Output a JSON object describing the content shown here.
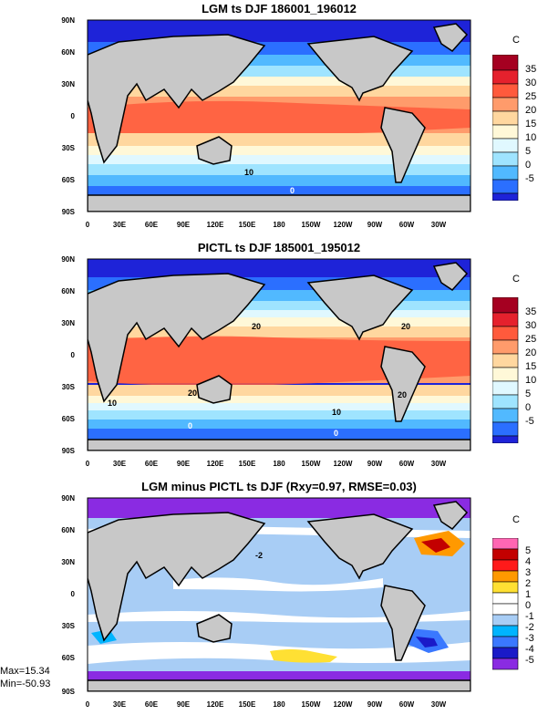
{
  "chart_data": [
    {
      "type": "heatmap",
      "title": "LGM ts DJF 186001_196012",
      "colorbar_unit": "C",
      "colorbar_labels": [
        "35",
        "30",
        "25",
        "20",
        "15",
        "10",
        "5",
        "0",
        "-5"
      ],
      "colorbar_colors": [
        "#a50021",
        "#e5212d",
        "#ff5a3c",
        "#ff9b6b",
        "#ffd79f",
        "#fff8d8",
        "#e0f8ff",
        "#9fe4ff",
        "#51b9ff",
        "#2b6fff",
        "#1e23d8"
      ],
      "lat_ticks": [
        "90N",
        "60N",
        "30N",
        "0",
        "30S",
        "60S",
        "90S"
      ],
      "lon_ticks": [
        "0",
        "30E",
        "60E",
        "90E",
        "120E",
        "150E",
        "180",
        "150W",
        "120W",
        "90W",
        "60W",
        "30W"
      ],
      "contour_labels": [
        "10",
        "0"
      ]
    },
    {
      "type": "heatmap",
      "title": "PICTL ts DJF 185001_195012",
      "colorbar_unit": "C",
      "colorbar_labels": [
        "35",
        "30",
        "25",
        "20",
        "15",
        "10",
        "5",
        "0",
        "-5"
      ],
      "colorbar_colors": [
        "#a50021",
        "#e5212d",
        "#ff5a3c",
        "#ff9b6b",
        "#ffd79f",
        "#fff8d8",
        "#e0f8ff",
        "#9fe4ff",
        "#51b9ff",
        "#2b6fff",
        "#1e23d8"
      ],
      "lat_ticks": [
        "90N",
        "60N",
        "30N",
        "0",
        "30S",
        "60S",
        "90S"
      ],
      "lon_ticks": [
        "0",
        "30E",
        "60E",
        "90E",
        "120E",
        "150E",
        "180",
        "150W",
        "120W",
        "90W",
        "60W",
        "30W"
      ],
      "contour_labels": [
        "20",
        "20",
        "20",
        "20",
        "10",
        "10",
        "0",
        "0"
      ]
    },
    {
      "type": "heatmap",
      "title": "LGM minus PICTL ts DJF (Rxy=0.97, RMSE=0.03)",
      "colorbar_unit": "C",
      "colorbar_labels": [
        "5",
        "4",
        "3",
        "2",
        "1",
        "0",
        "-1",
        "-2",
        "-3",
        "-4",
        "-5"
      ],
      "colorbar_colors": [
        "#ff66b3",
        "#c30000",
        "#ff1a1a",
        "#ff9900",
        "#ffe033",
        "#ffffff",
        "#ffffff",
        "#a8cdf5",
        "#00b4ff",
        "#3a78ff",
        "#1a1ac8",
        "#8a2be2"
      ],
      "lat_ticks": [
        "90N",
        "60N",
        "30N",
        "0",
        "30S",
        "60S",
        "90S"
      ],
      "lon_ticks": [
        "0",
        "30E",
        "60E",
        "90E",
        "120E",
        "150E",
        "180",
        "150W",
        "120W",
        "90W",
        "60W",
        "30W"
      ],
      "contour_labels": [
        "-2"
      ],
      "stats": {
        "max": "Max=15.34",
        "min": "Min=-50.93"
      }
    }
  ]
}
